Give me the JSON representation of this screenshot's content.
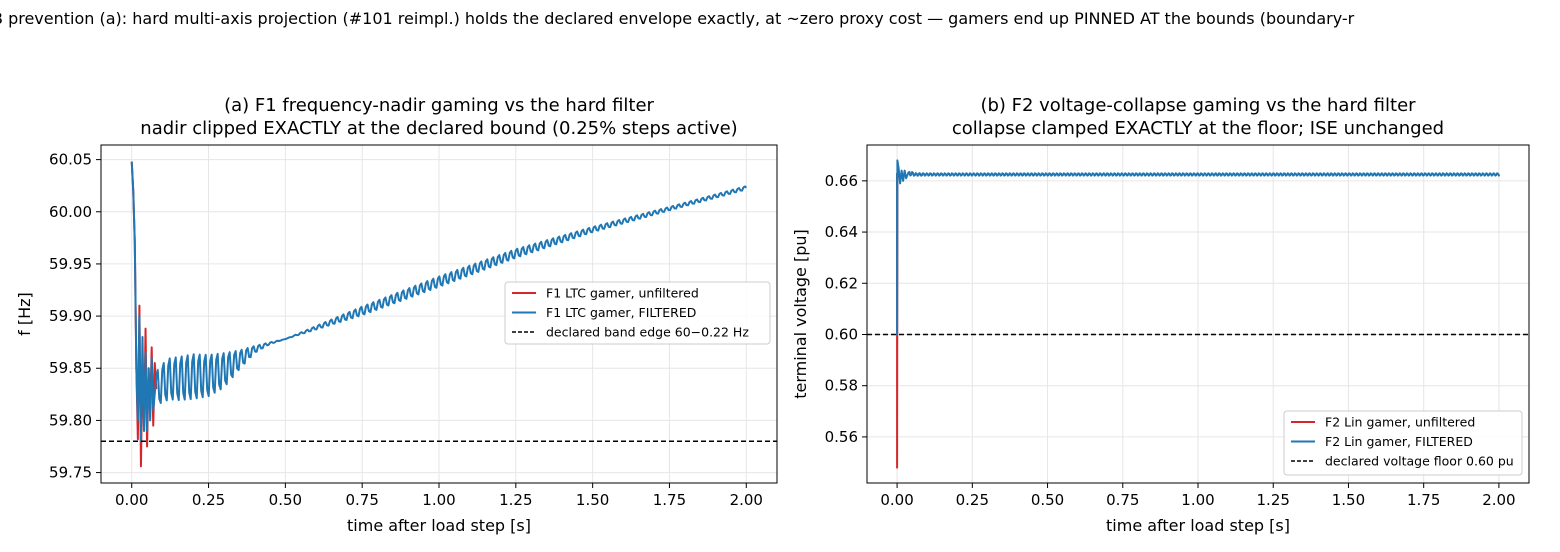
{
  "suptitle": "B prevention (a): hard multi-axis projection (#101 reimpl.) holds the declared envelope exactly, at ~zero proxy cost — gamers end up PINNED AT the bounds (boundary-r",
  "colors": {
    "unfiltered": "#d62728",
    "filtered": "#1f77b4",
    "bound": "#000000",
    "grid": "#e6e6e6"
  },
  "chart_data": [
    {
      "type": "line",
      "title": "(a) F1 frequency-nadir gaming vs the hard filter",
      "subtitle": "nadir clipped EXACTLY at the declared bound (0.25% steps active)",
      "xlabel": "time after load step [s]",
      "ylabel": "f [Hz]",
      "xlim": [
        -0.1,
        2.1
      ],
      "ylim": [
        59.74,
        60.064
      ],
      "xticks": [
        "0.00",
        "0.25",
        "0.50",
        "0.75",
        "1.00",
        "1.25",
        "1.50",
        "1.75",
        "2.00"
      ],
      "xtick_values": [
        0,
        0.25,
        0.5,
        0.75,
        1.0,
        1.25,
        1.5,
        1.75,
        2.0
      ],
      "yticks": [
        "59.75",
        "59.80",
        "59.85",
        "59.90",
        "59.95",
        "60.00",
        "60.05"
      ],
      "ytick_values": [
        59.75,
        59.8,
        59.85,
        59.9,
        59.95,
        60.0,
        60.05
      ],
      "grid": true,
      "legend_position": "center-right",
      "hline": {
        "y": 59.78,
        "name": "declared band edge 60−0.22 Hz"
      },
      "series": [
        {
          "name": "F1 LTC gamer, unfiltered",
          "x": [
            0.0,
            0.005,
            0.01,
            0.015,
            0.02,
            0.025,
            0.03,
            0.035,
            0.04,
            0.045,
            0.05,
            0.055,
            0.06,
            0.065,
            0.07,
            0.075,
            0.08
          ],
          "y": [
            60.048,
            60.02,
            59.97,
            59.85,
            59.782,
            59.91,
            59.756,
            59.86,
            59.79,
            59.888,
            59.775,
            59.85,
            59.81,
            59.87,
            59.795,
            59.855,
            59.83
          ]
        },
        {
          "name": "F1 LTC gamer, FILTERED",
          "x": [
            0.0,
            0.005,
            0.01,
            0.015,
            0.02,
            0.025,
            0.03,
            0.035,
            0.04,
            0.045,
            0.05,
            0.055,
            0.06,
            0.065,
            0.07,
            0.08,
            0.1,
            0.125,
            0.15,
            0.2,
            0.25,
            0.3,
            0.35,
            0.4,
            0.45,
            0.5,
            0.75,
            1.0,
            1.25,
            1.5,
            1.75,
            2.0
          ],
          "y": [
            60.048,
            60.02,
            59.97,
            59.85,
            59.8,
            59.9,
            59.78,
            59.88,
            59.79,
            59.865,
            59.79,
            59.85,
            59.8,
            59.86,
            59.81,
            59.83,
            59.836,
            59.84,
            59.84,
            59.842,
            59.843,
            59.848,
            59.858,
            59.868,
            59.874,
            59.878,
            59.905,
            59.933,
            59.96,
            59.983,
            60.003,
            60.023
          ],
          "osc_amp": [
            0,
            0,
            0,
            0,
            0,
            0,
            0,
            0,
            0,
            0,
            0,
            0,
            0,
            0,
            0,
            0.02,
            0.022,
            0.024,
            0.025,
            0.026,
            0.024,
            0.02,
            0.011,
            0.004,
            0.001,
            0,
            0.005,
            0.006,
            0.005,
            0.003,
            0.002,
            0.002
          ]
        }
      ]
    },
    {
      "type": "line",
      "title": "(b) F2 voltage-collapse gaming vs the hard filter",
      "subtitle": "collapse clamped EXACTLY at the floor; ISE unchanged",
      "xlabel": "time after load step [s]",
      "ylabel": "terminal voltage [pu]",
      "xlim": [
        -0.1,
        2.1
      ],
      "ylim": [
        0.542,
        0.674
      ],
      "xticks": [
        "0.00",
        "0.25",
        "0.50",
        "0.75",
        "1.00",
        "1.25",
        "1.50",
        "1.75",
        "2.00"
      ],
      "xtick_values": [
        0,
        0.25,
        0.5,
        0.75,
        1.0,
        1.25,
        1.5,
        1.75,
        2.0
      ],
      "yticks": [
        "0.56",
        "0.58",
        "0.60",
        "0.62",
        "0.64",
        "0.66"
      ],
      "ytick_values": [
        0.56,
        0.58,
        0.6,
        0.62,
        0.64,
        0.66
      ],
      "grid": true,
      "legend_position": "bottom-right",
      "hline": {
        "y": 0.6,
        "name": "declared voltage floor 0.60 pu"
      },
      "series": [
        {
          "name": "F2 Lin gamer, unfiltered",
          "x": [
            0.0,
            0.0,
            0.001
          ],
          "y": [
            0.663,
            0.548,
            0.663
          ]
        },
        {
          "name": "F2 Lin gamer, FILTERED",
          "x": [
            0.0,
            0.0,
            0.001,
            0.005,
            0.01,
            0.015,
            0.02,
            0.025,
            0.03,
            0.04,
            0.06,
            0.1,
            0.5,
            1.0,
            1.5,
            2.0
          ],
          "y": [
            0.663,
            0.6,
            0.668,
            0.665,
            0.659,
            0.664,
            0.66,
            0.664,
            0.661,
            0.663,
            0.6625,
            0.6625,
            0.6625,
            0.6625,
            0.6625,
            0.6625
          ],
          "osc_amp": [
            0,
            0,
            0,
            0,
            0,
            0,
            0,
            0,
            0,
            0.001,
            0.0006,
            0.0005,
            0.0005,
            0.0005,
            0.0005,
            0.0005
          ]
        }
      ]
    }
  ]
}
